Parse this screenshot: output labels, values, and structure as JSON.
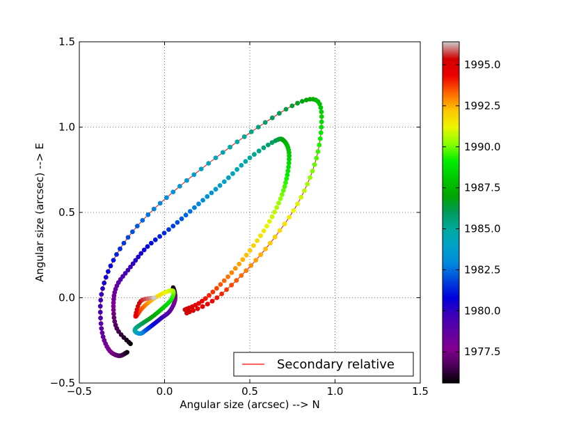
{
  "chart_data": {
    "type": "scatter",
    "title": "",
    "xlabel": "Angular size (arcsec) --> N",
    "ylabel": "Angular size (arcsec) --> E",
    "xlim": [
      -0.5,
      1.5
    ],
    "ylim": [
      -0.5,
      1.5
    ],
    "xticks": [
      -0.5,
      0.0,
      0.5,
      1.0,
      1.5
    ],
    "xtick_labels": [
      "−0.5",
      "0.0",
      "0.5",
      "1.0",
      "1.5"
    ],
    "yticks": [
      -0.5,
      0.0,
      0.5,
      1.0,
      1.5
    ],
    "ytick_labels": [
      "−0.5",
      "0.0",
      "0.5",
      "1.0",
      "1.5"
    ],
    "grid": true,
    "legend": {
      "placement": "lower-right",
      "entries": [
        {
          "label": "Secondary relative",
          "color": "#ff0000",
          "style": "line"
        }
      ]
    },
    "colorbar": {
      "range": [
        1975.6,
        1996.4
      ],
      "ticks": [
        1977.5,
        1980.0,
        1982.5,
        1985.0,
        1987.5,
        1990.0,
        1992.5,
        1995.0
      ],
      "tick_labels": [
        "1977.5",
        "1980.0",
        "1982.5",
        "1985.0",
        "1987.5",
        "1990.0",
        "1992.5",
        "1995.0"
      ],
      "colormap": "nipy_spectral"
    },
    "series": [
      {
        "name": "Secondary relative",
        "kind": "orbit-line-with-time-colored-points",
        "x": [
          -0.22,
          -0.27,
          -0.33,
          -0.37,
          -0.37,
          -0.3,
          -0.16,
          0.05,
          0.3,
          0.55,
          0.78,
          0.9,
          0.92,
          0.88,
          0.78,
          0.62,
          0.45,
          0.28,
          0.13
        ],
        "y": [
          -0.32,
          -0.34,
          -0.3,
          -0.18,
          0.02,
          0.22,
          0.42,
          0.62,
          0.82,
          1.0,
          1.14,
          1.15,
          1.0,
          0.78,
          0.55,
          0.32,
          0.13,
          -0.02,
          -0.09
        ],
        "t": [
          1975.6,
          1976.7,
          1977.8,
          1978.9,
          1980.0,
          1981.1,
          1982.2,
          1983.3,
          1984.4,
          1985.5,
          1986.6,
          1987.7,
          1988.8,
          1989.9,
          1991.0,
          1992.1,
          1993.2,
          1994.3,
          1995.4
        ]
      },
      {
        "name": "",
        "kind": "time-colored-points",
        "x": [
          -0.2,
          -0.28,
          -0.3,
          -0.28,
          -0.2,
          -0.1,
          0.05,
          0.2,
          0.35,
          0.5,
          0.65,
          0.7,
          0.73,
          0.72,
          0.68,
          0.6,
          0.48,
          0.35,
          0.22,
          0.12
        ],
        "y": [
          -0.27,
          -0.18,
          -0.05,
          0.07,
          0.18,
          0.3,
          0.42,
          0.55,
          0.68,
          0.82,
          0.92,
          0.92,
          0.85,
          0.72,
          0.58,
          0.42,
          0.25,
          0.1,
          -0.02,
          -0.07
        ],
        "t": [
          1975.6,
          1976.6,
          1977.7,
          1978.7,
          1979.8,
          1980.8,
          1981.8,
          1982.9,
          1983.9,
          1985.0,
          1986.0,
          1987.1,
          1988.1,
          1989.1,
          1990.2,
          1991.2,
          1992.3,
          1993.3,
          1994.3,
          1995.4
        ]
      },
      {
        "name": "",
        "kind": "time-colored-points",
        "x": [
          0.05,
          0.06,
          0.06,
          0.03,
          -0.02,
          -0.07,
          -0.11,
          -0.14,
          -0.17,
          -0.17,
          -0.13,
          -0.07,
          -0.01,
          0.04,
          0.05,
          0.0,
          -0.07,
          -0.13,
          -0.17,
          -0.14,
          -0.06
        ],
        "y": [
          0.06,
          0.03,
          -0.02,
          -0.08,
          -0.12,
          -0.16,
          -0.19,
          -0.21,
          -0.2,
          -0.18,
          -0.15,
          -0.11,
          -0.06,
          -0.01,
          0.04,
          0.03,
          -0.01,
          -0.06,
          -0.11,
          -0.02,
          0.0
        ],
        "t": [
          1975.6,
          1976.6,
          1977.7,
          1978.7,
          1979.8,
          1980.8,
          1981.8,
          1982.9,
          1983.9,
          1985.0,
          1986.0,
          1987.0,
          1988.1,
          1989.1,
          1990.2,
          1991.2,
          1992.2,
          1993.3,
          1994.3,
          1995.4,
          1996.4
        ]
      }
    ]
  }
}
